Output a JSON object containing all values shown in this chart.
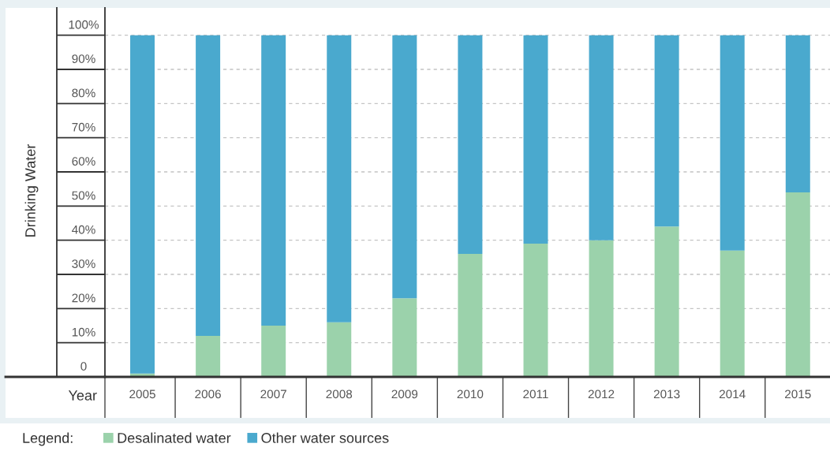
{
  "chart_data": {
    "type": "bar",
    "stacked": true,
    "categories": [
      "2005",
      "2006",
      "2007",
      "2008",
      "2009",
      "2010",
      "2011",
      "2012",
      "2013",
      "2014",
      "2015"
    ],
    "series": [
      {
        "name": "Desalinated water",
        "color": "#9bd2ab",
        "values": [
          1,
          12,
          15,
          16,
          23,
          36,
          39,
          40,
          44,
          37,
          54
        ]
      },
      {
        "name": "Other water sources",
        "color": "#4aa9ce",
        "values": [
          99,
          88,
          85,
          84,
          77,
          64,
          61,
          60,
          56,
          63,
          46
        ]
      }
    ],
    "xlabel": "Year",
    "ylabel": "Drinking Water",
    "legend_title": "Legend:",
    "legend": "bottom",
    "grid": "y",
    "ylim": [
      0,
      108
    ],
    "yticks": [
      0,
      {
        "value": 10,
        "label": "10%"
      },
      {
        "value": 20,
        "label": "20%"
      },
      {
        "value": 30,
        "label": "30%"
      },
      {
        "value": 40,
        "label": "40%"
      },
      {
        "value": 50,
        "label": "50%"
      },
      {
        "value": 60,
        "label": "60%"
      },
      {
        "value": 70,
        "label": "70%"
      },
      {
        "value": 80,
        "label": "80%"
      },
      {
        "value": 90,
        "label": "90%"
      },
      {
        "value": 100,
        "label": "100%"
      }
    ]
  }
}
